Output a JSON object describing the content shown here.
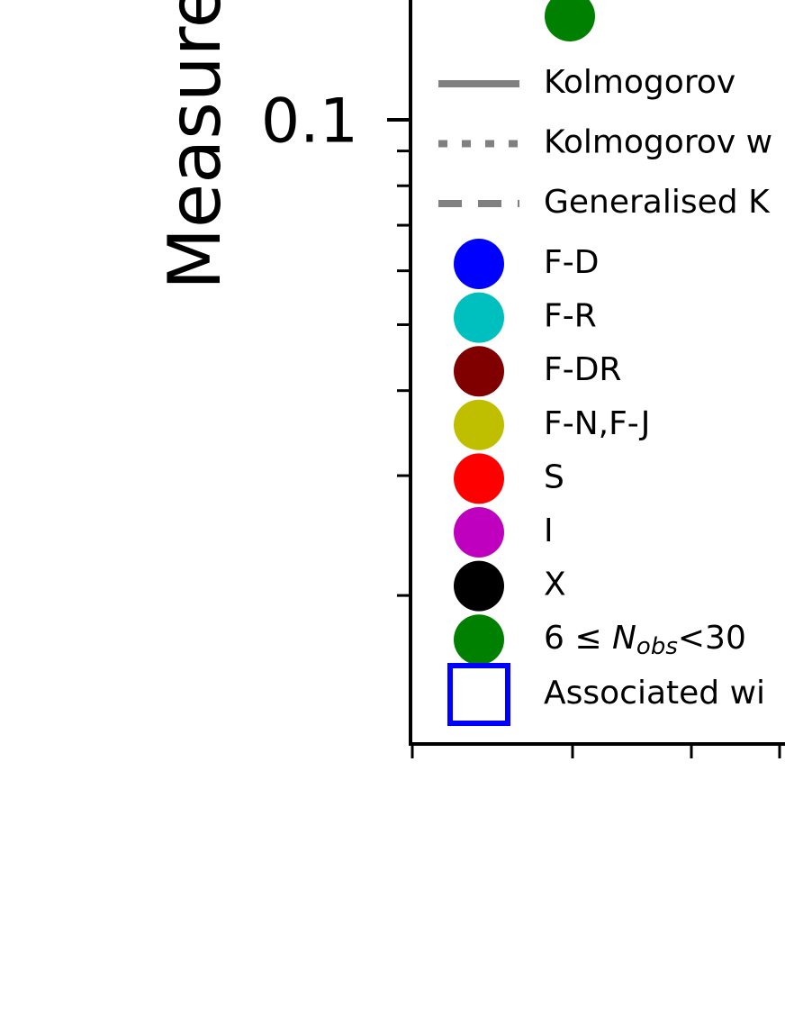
{
  "chart_data": {
    "type": "scatter",
    "y_label": "Measure",
    "ylim": [
      0.0121,
      0.15
    ],
    "log_y": true,
    "yticks": [
      0.1
    ],
    "yminorticks": [
      0.02,
      0.03,
      0.04,
      0.05,
      0.06,
      0.07,
      0.08,
      0.09
    ],
    "legend": "upper left",
    "lines": [
      {
        "name": "Kolmogorov",
        "style": "solid",
        "color": "#808080"
      },
      {
        "name": "Kolmogorov w",
        "style": "dotted",
        "color": "#808080"
      },
      {
        "name": "Generalised K",
        "style": "dashed",
        "color": "#808080"
      }
    ],
    "series": [
      {
        "name": null,
        "color": "#008000",
        "marker": "circle"
      },
      {
        "name": "F-D",
        "color": "#0000ff",
        "marker": "circle"
      },
      {
        "name": "F-R",
        "color": "#00bfbf",
        "marker": "circle"
      },
      {
        "name": "F-DR",
        "color": "#800000",
        "marker": "circle"
      },
      {
        "name": "F-N,F-J",
        "color": "#bfbf00",
        "marker": "circle"
      },
      {
        "name": "S",
        "color": "#ff0000",
        "marker": "circle"
      },
      {
        "name": "I",
        "color": "#bf00bf",
        "marker": "circle"
      },
      {
        "name": "X",
        "color": "#000000",
        "marker": "circle"
      },
      {
        "name": [
          "6 ≤ ",
          "N",
          "obs",
          "<30"
        ],
        "color": "#008000",
        "marker": "circle"
      },
      {
        "name": "Associated wi",
        "color": "#0000ff",
        "marker": "open-square"
      }
    ]
  }
}
